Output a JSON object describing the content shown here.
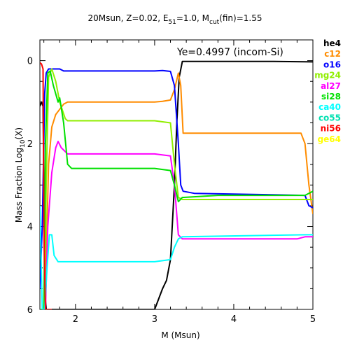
{
  "chart_data": {
    "type": "line",
    "title_main": "20Msun, Z=0.02, E",
    "title_sub1": "51",
    "title_mid": "=1.0, M",
    "title_sub2": "cut",
    "title_end": "(fin)=1.55",
    "xlabel": "M (Msun)",
    "ylabel_main": "Mass Fraction Log",
    "ylabel_sub": "10",
    "ylabel_end": "(X)",
    "annotation": "Ye=0.4997 (incom-Si)",
    "xlim": [
      1.55,
      5
    ],
    "ylim": [
      -6,
      0.5
    ],
    "xticks": [
      2,
      3,
      4,
      5
    ],
    "xtick_labels": [
      "2",
      "3",
      "4",
      "5"
    ],
    "yticks": [
      0,
      -2,
      -4,
      -6
    ],
    "ytick_labels": [
      "0",
      "2",
      "4",
      "6"
    ],
    "legend_position": "outside-right",
    "series": [
      {
        "name": "he4",
        "color": "#000000",
        "points": [
          [
            1.55,
            -1.1
          ],
          [
            1.57,
            -1.0
          ],
          [
            1.59,
            -1.1
          ],
          [
            1.61,
            -5.5
          ],
          [
            1.63,
            -6.0
          ],
          [
            3.0,
            -6.0
          ],
          [
            3.02,
            -5.9
          ],
          [
            3.1,
            -5.5
          ],
          [
            3.15,
            -5.3
          ],
          [
            3.2,
            -4.8
          ],
          [
            3.25,
            -3.0
          ],
          [
            3.28,
            -1.5
          ],
          [
            3.31,
            -0.4
          ],
          [
            3.35,
            -0.02
          ],
          [
            3.6,
            -0.02
          ],
          [
            4.5,
            -0.02
          ],
          [
            5.0,
            -0.03
          ]
        ]
      },
      {
        "name": "c12",
        "color": "#ff8c00",
        "points": [
          [
            1.55,
            -6.0
          ],
          [
            1.62,
            -6.0
          ],
          [
            1.64,
            -4.0
          ],
          [
            1.66,
            -2.5
          ],
          [
            1.7,
            -1.6
          ],
          [
            1.75,
            -1.3
          ],
          [
            1.85,
            -1.05
          ],
          [
            1.9,
            -1.0
          ],
          [
            3.0,
            -1.0
          ],
          [
            3.1,
            -0.98
          ],
          [
            3.2,
            -0.95
          ],
          [
            3.25,
            -0.7
          ],
          [
            3.3,
            -0.3
          ],
          [
            3.33,
            -0.6
          ],
          [
            3.36,
            -1.75
          ],
          [
            3.4,
            -1.75
          ],
          [
            4.85,
            -1.75
          ],
          [
            4.9,
            -2.0
          ],
          [
            4.95,
            -3.0
          ],
          [
            5.0,
            -3.7
          ]
        ]
      },
      {
        "name": "o16",
        "color": "#0000ff",
        "points": [
          [
            1.55,
            -5.5
          ],
          [
            1.58,
            -4.0
          ],
          [
            1.61,
            -0.8
          ],
          [
            1.63,
            -0.3
          ],
          [
            1.66,
            -0.2
          ],
          [
            1.7,
            -0.2
          ],
          [
            1.8,
            -0.2
          ],
          [
            1.85,
            -0.25
          ],
          [
            3.0,
            -0.25
          ],
          [
            3.1,
            -0.24
          ],
          [
            3.2,
            -0.26
          ],
          [
            3.25,
            -0.6
          ],
          [
            3.3,
            -2.0
          ],
          [
            3.33,
            -3.0
          ],
          [
            3.36,
            -3.15
          ],
          [
            3.5,
            -3.2
          ],
          [
            4.9,
            -3.25
          ],
          [
            4.95,
            -3.5
          ],
          [
            5.0,
            -3.55
          ]
        ]
      },
      {
        "name": "mg24",
        "color": "#90ee00",
        "points": [
          [
            1.55,
            -6.0
          ],
          [
            1.61,
            -6.0
          ],
          [
            1.63,
            -3.0
          ],
          [
            1.66,
            -0.4
          ],
          [
            1.7,
            -0.2
          ],
          [
            1.75,
            -0.5
          ],
          [
            1.8,
            -1.0
          ],
          [
            1.87,
            -1.4
          ],
          [
            1.9,
            -1.45
          ],
          [
            3.0,
            -1.45
          ],
          [
            3.2,
            -1.5
          ],
          [
            3.25,
            -2.5
          ],
          [
            3.3,
            -3.3
          ],
          [
            3.35,
            -3.35
          ],
          [
            5.0,
            -3.35
          ]
        ]
      },
      {
        "name": "al27",
        "color": "#ff00ff",
        "points": [
          [
            1.55,
            -6.0
          ],
          [
            1.62,
            -6.0
          ],
          [
            1.65,
            -4.0
          ],
          [
            1.7,
            -2.7
          ],
          [
            1.75,
            -2.1
          ],
          [
            1.78,
            -1.95
          ],
          [
            1.82,
            -2.1
          ],
          [
            1.9,
            -2.25
          ],
          [
            3.0,
            -2.25
          ],
          [
            3.2,
            -2.3
          ],
          [
            3.25,
            -3.0
          ],
          [
            3.3,
            -4.2
          ],
          [
            3.35,
            -4.3
          ],
          [
            4.0,
            -4.3
          ],
          [
            4.8,
            -4.3
          ],
          [
            4.9,
            -4.25
          ],
          [
            5.0,
            -4.25
          ]
        ]
      },
      {
        "name": "si28",
        "color": "#00e000",
        "points": [
          [
            1.55,
            -6.0
          ],
          [
            1.6,
            -6.0
          ],
          [
            1.62,
            -2.0
          ],
          [
            1.65,
            -0.3
          ],
          [
            1.68,
            -0.25
          ],
          [
            1.72,
            -0.6
          ],
          [
            1.78,
            -1.0
          ],
          [
            1.8,
            -0.9
          ],
          [
            1.85,
            -1.5
          ],
          [
            1.9,
            -2.5
          ],
          [
            1.95,
            -2.6
          ],
          [
            3.0,
            -2.6
          ],
          [
            3.2,
            -2.65
          ],
          [
            3.25,
            -3.0
          ],
          [
            3.3,
            -3.4
          ],
          [
            3.35,
            -3.3
          ],
          [
            3.8,
            -3.25
          ],
          [
            4.9,
            -3.25
          ],
          [
            5.0,
            -3.15
          ]
        ]
      },
      {
        "name": "ca40",
        "color": "#00ffff",
        "points": [
          [
            1.55,
            -3.5
          ],
          [
            1.58,
            -6.0
          ],
          [
            1.61,
            -6.0
          ],
          [
            1.64,
            -5.0
          ],
          [
            1.67,
            -4.2
          ],
          [
            1.7,
            -4.2
          ],
          [
            1.73,
            -4.7
          ],
          [
            1.78,
            -4.85
          ],
          [
            1.9,
            -4.85
          ],
          [
            3.0,
            -4.85
          ],
          [
            3.2,
            -4.8
          ],
          [
            3.25,
            -4.5
          ],
          [
            3.3,
            -4.3
          ],
          [
            3.35,
            -4.25
          ],
          [
            4.9,
            -4.2
          ],
          [
            5.0,
            -4.2
          ]
        ]
      },
      {
        "name": "co55",
        "color": "#00e0b0",
        "points": []
      },
      {
        "name": "ni56",
        "color": "#ff0000",
        "points": [
          [
            1.55,
            -0.05
          ],
          [
            1.57,
            -0.08
          ],
          [
            1.59,
            -0.2
          ],
          [
            1.6,
            -4.0
          ],
          [
            1.62,
            -6.0
          ],
          [
            1.7,
            -6.0
          ]
        ]
      },
      {
        "name": "ge64",
        "color": "#ffff00",
        "points": []
      }
    ]
  }
}
